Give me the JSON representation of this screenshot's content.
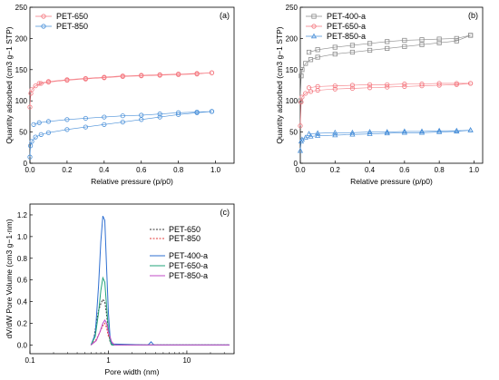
{
  "chart_data": [
    {
      "panel_label": "(a)",
      "type": "scatter",
      "xlabel": "Relative pressure (p/p0)",
      "ylabel": "Quantity adsorbed (cm3 g−1 STP)",
      "xlim": [
        0,
        1.1
      ],
      "ylim": [
        0,
        250
      ],
      "xticks": [
        "0.0",
        "0.2",
        "0.4",
        "0.6",
        "0.8",
        "1.0"
      ],
      "yticks": [
        "0",
        "50",
        "100",
        "150",
        "200",
        "250"
      ],
      "legend_placement": "top-left",
      "series": [
        {
          "name": "PET-650",
          "color": "#f4777f",
          "marker": "circle",
          "adsorption": [
            [
              0.0,
              90
            ],
            [
              0.005,
              112
            ],
            [
              0.01,
              118
            ],
            [
              0.03,
              124
            ],
            [
              0.06,
              128
            ],
            [
              0.1,
              130
            ],
            [
              0.2,
              133
            ],
            [
              0.3,
              135
            ],
            [
              0.4,
              137
            ],
            [
              0.5,
              139
            ],
            [
              0.6,
              140
            ],
            [
              0.7,
              141
            ],
            [
              0.8,
              142
            ],
            [
              0.9,
              143
            ],
            [
              0.98,
              145
            ]
          ],
          "desorption": [
            [
              0.98,
              145
            ],
            [
              0.9,
              144
            ],
            [
              0.8,
              143
            ],
            [
              0.7,
              142
            ],
            [
              0.6,
              141
            ],
            [
              0.5,
              140
            ],
            [
              0.4,
              138
            ],
            [
              0.3,
              136
            ],
            [
              0.2,
              134
            ],
            [
              0.1,
              131
            ],
            [
              0.05,
              128
            ]
          ]
        },
        {
          "name": "PET-850",
          "color": "#4a90d9",
          "marker": "circle",
          "adsorption": [
            [
              0.0,
              10
            ],
            [
              0.003,
              28
            ],
            [
              0.01,
              35
            ],
            [
              0.03,
              42
            ],
            [
              0.06,
              46
            ],
            [
              0.1,
              49
            ],
            [
              0.2,
              54
            ],
            [
              0.3,
              58
            ],
            [
              0.4,
              62
            ],
            [
              0.5,
              66
            ],
            [
              0.6,
              70
            ],
            [
              0.7,
              74
            ],
            [
              0.8,
              78
            ],
            [
              0.9,
              81
            ],
            [
              0.98,
              83
            ]
          ],
          "desorption": [
            [
              0.98,
              83
            ],
            [
              0.9,
              82
            ],
            [
              0.8,
              81
            ],
            [
              0.7,
              79
            ],
            [
              0.6,
              77
            ],
            [
              0.5,
              76
            ],
            [
              0.4,
              74
            ],
            [
              0.3,
              72
            ],
            [
              0.2,
              70
            ],
            [
              0.1,
              67
            ],
            [
              0.05,
              65
            ],
            [
              0.02,
              62
            ]
          ]
        }
      ]
    },
    {
      "panel_label": "(b)",
      "type": "scatter",
      "xlabel": "Relative pressure (p/p0)",
      "ylabel": "Quantity adsorbed (cm3 g−1 STP)",
      "xlim": [
        0,
        1.05
      ],
      "ylim": [
        0,
        250
      ],
      "xticks": [
        "0.0",
        "0.2",
        "0.4",
        "0.6",
        "0.8",
        "1.0"
      ],
      "yticks": [
        "0",
        "50",
        "100",
        "150",
        "200",
        "250"
      ],
      "legend_placement": "top-left",
      "series": [
        {
          "name": "PET-400-a",
          "color": "#8c8c8c",
          "marker": "square",
          "adsorption": [
            [
              0.0,
              100
            ],
            [
              0.005,
              140
            ],
            [
              0.01,
              150
            ],
            [
              0.03,
              160
            ],
            [
              0.06,
              166
            ],
            [
              0.1,
              170
            ],
            [
              0.2,
              175
            ],
            [
              0.3,
              178
            ],
            [
              0.4,
              181
            ],
            [
              0.5,
              184
            ],
            [
              0.6,
              187
            ],
            [
              0.7,
              190
            ],
            [
              0.8,
              193
            ],
            [
              0.9,
              196
            ],
            [
              0.98,
              205
            ]
          ],
          "desorption": [
            [
              0.98,
              205
            ],
            [
              0.9,
              200
            ],
            [
              0.8,
              199
            ],
            [
              0.7,
              198
            ],
            [
              0.6,
              197
            ],
            [
              0.5,
              195
            ],
            [
              0.4,
              192
            ],
            [
              0.3,
              189
            ],
            [
              0.2,
              186
            ],
            [
              0.1,
              182
            ],
            [
              0.05,
              178
            ]
          ]
        },
        {
          "name": "PET-650-a",
          "color": "#f4777f",
          "marker": "circle",
          "adsorption": [
            [
              0.0,
              60
            ],
            [
              0.005,
              98
            ],
            [
              0.01,
              106
            ],
            [
              0.03,
              112
            ],
            [
              0.06,
              115
            ],
            [
              0.1,
              117
            ],
            [
              0.2,
              119
            ],
            [
              0.3,
              120
            ],
            [
              0.4,
              121
            ],
            [
              0.5,
              122
            ],
            [
              0.6,
              123
            ],
            [
              0.7,
              124
            ],
            [
              0.8,
              125
            ],
            [
              0.9,
              126
            ],
            [
              0.98,
              128
            ]
          ],
          "desorption": [
            [
              0.98,
              128
            ],
            [
              0.9,
              128
            ],
            [
              0.8,
              128
            ],
            [
              0.7,
              127
            ],
            [
              0.6,
              127
            ],
            [
              0.5,
              126
            ],
            [
              0.4,
              126
            ],
            [
              0.3,
              125
            ],
            [
              0.2,
              124
            ],
            [
              0.1,
              123
            ],
            [
              0.05,
              121
            ]
          ]
        },
        {
          "name": "PET-850-a",
          "color": "#4a90d9",
          "marker": "triangle",
          "adsorption": [
            [
              0.0,
              20
            ],
            [
              0.005,
              35
            ],
            [
              0.01,
              38
            ],
            [
              0.03,
              41
            ],
            [
              0.06,
              43
            ],
            [
              0.1,
              44
            ],
            [
              0.2,
              45
            ],
            [
              0.3,
              46
            ],
            [
              0.4,
              47
            ],
            [
              0.5,
              48
            ],
            [
              0.6,
              49
            ],
            [
              0.7,
              49
            ],
            [
              0.8,
              50
            ],
            [
              0.9,
              51
            ],
            [
              0.98,
              53
            ]
          ],
          "desorption": [
            [
              0.98,
              53
            ],
            [
              0.9,
              52
            ],
            [
              0.8,
              52
            ],
            [
              0.7,
              51
            ],
            [
              0.6,
              51
            ],
            [
              0.5,
              50
            ],
            [
              0.4,
              50
            ],
            [
              0.3,
              49
            ],
            [
              0.2,
              49
            ],
            [
              0.1,
              48
            ],
            [
              0.05,
              47
            ]
          ]
        }
      ]
    },
    {
      "panel_label": "(c)",
      "type": "line",
      "xlabel": "Pore width (nm)",
      "ylabel": "dV/dW Pore Volume (cm3 g−1·nm)",
      "xscale": "log",
      "xlim": [
        0.1,
        40
      ],
      "ylim": [
        -0.08,
        1.3
      ],
      "xticks": [
        "0.1",
        "1",
        "10"
      ],
      "yticks": [
        "0.0",
        "0.2",
        "0.4",
        "0.6",
        "0.8",
        "1.0",
        "1.2"
      ],
      "legend_placement": "top-right",
      "series": [
        {
          "name": "PET-650",
          "color": "#333333",
          "dash": "dotted",
          "points": [
            [
              0.6,
              0
            ],
            [
              0.65,
              0.05
            ],
            [
              0.7,
              0.2
            ],
            [
              0.75,
              0.32
            ],
            [
              0.8,
              0.38
            ],
            [
              0.85,
              0.42
            ],
            [
              0.9,
              0.4
            ],
            [
              0.95,
              0.28
            ],
            [
              1.0,
              0.12
            ],
            [
              1.05,
              0.03
            ],
            [
              1.1,
              0
            ],
            [
              35,
              0
            ]
          ]
        },
        {
          "name": "PET-850",
          "color": "#e33b3b",
          "dash": "dotted",
          "points": [
            [
              0.6,
              0
            ],
            [
              0.7,
              0.05
            ],
            [
              0.78,
              0.12
            ],
            [
              0.85,
              0.18
            ],
            [
              0.9,
              0.2
            ],
            [
              0.95,
              0.16
            ],
            [
              1.0,
              0.08
            ],
            [
              1.1,
              0.02
            ],
            [
              1.2,
              0
            ],
            [
              35,
              0
            ]
          ]
        },
        {
          "name": "PET-400-a",
          "color": "#2e6fd1",
          "dash": "solid",
          "points": [
            [
              0.6,
              0
            ],
            [
              0.68,
              0.1
            ],
            [
              0.75,
              0.55
            ],
            [
              0.8,
              0.95
            ],
            [
              0.85,
              1.19
            ],
            [
              0.9,
              1.15
            ],
            [
              0.95,
              0.7
            ],
            [
              1.0,
              0.3
            ],
            [
              1.05,
              0.08
            ],
            [
              1.1,
              0.01
            ],
            [
              3.2,
              0
            ],
            [
              3.5,
              0.03
            ],
            [
              3.8,
              0
            ],
            [
              35,
              0
            ]
          ]
        },
        {
          "name": "PET-650-a",
          "color": "#22a37a",
          "dash": "solid",
          "points": [
            [
              0.6,
              0
            ],
            [
              0.68,
              0.08
            ],
            [
              0.75,
              0.3
            ],
            [
              0.8,
              0.5
            ],
            [
              0.85,
              0.62
            ],
            [
              0.9,
              0.58
            ],
            [
              0.95,
              0.35
            ],
            [
              1.0,
              0.15
            ],
            [
              1.05,
              0.04
            ],
            [
              1.1,
              0
            ],
            [
              35,
              0
            ]
          ]
        },
        {
          "name": "PET-850-a",
          "color": "#c04bc7",
          "dash": "solid",
          "points": [
            [
              0.6,
              0
            ],
            [
              0.7,
              0.04
            ],
            [
              0.78,
              0.12
            ],
            [
              0.85,
              0.2
            ],
            [
              0.9,
              0.23
            ],
            [
              0.95,
              0.2
            ],
            [
              1.0,
              0.12
            ],
            [
              1.1,
              0.03
            ],
            [
              1.2,
              0
            ],
            [
              35,
              0
            ]
          ]
        }
      ]
    }
  ]
}
